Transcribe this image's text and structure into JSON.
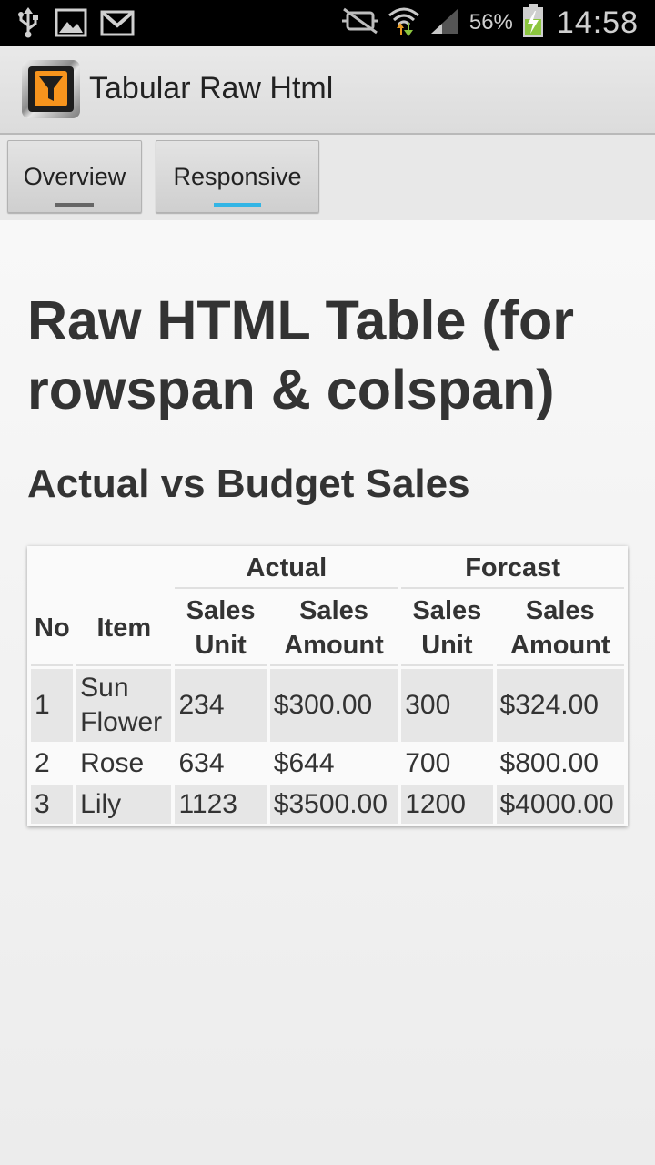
{
  "status_bar": {
    "battery_percent": "56%",
    "time": "14:58",
    "icons": [
      "usb-icon",
      "gallery-icon",
      "gmail-icon",
      "mute-icon",
      "wifi-icon",
      "signal-icon",
      "battery-charging-icon"
    ]
  },
  "action_bar": {
    "title": "Tabular Raw Html"
  },
  "tabs": [
    {
      "label": "Overview",
      "selected": false
    },
    {
      "label": "Responsive",
      "selected": true
    }
  ],
  "page": {
    "heading": "Raw HTML Table (for rowspan & colspan)",
    "subheading": "Actual vs Budget Sales"
  },
  "table": {
    "group_headers": [
      "Actual",
      "Forcast"
    ],
    "headers": {
      "no": "No",
      "item": "Item",
      "actual_unit": "Sales Unit",
      "actual_amount": "Sales Amount",
      "forecast_unit": "Sales Unit",
      "forecast_amount": "Sales Amount"
    },
    "rows": [
      {
        "no": "1",
        "item": "Sun Flower",
        "actual_unit": "234",
        "actual_amount": "$300.00",
        "forecast_unit": "300",
        "forecast_amount": "$324.00"
      },
      {
        "no": "2",
        "item": "Rose",
        "actual_unit": "634",
        "actual_amount": "$644",
        "forecast_unit": "700",
        "forecast_amount": "$800.00"
      },
      {
        "no": "3",
        "item": "Lily",
        "actual_unit": "1123",
        "actual_amount": "$3500.00",
        "forecast_unit": "1200",
        "forecast_amount": "$4000.00"
      }
    ]
  },
  "colors": {
    "status_bar": "#000000",
    "tab_selected_indicator": "#33b5e5",
    "tab_indicator": "#666666",
    "app_icon_orange": "#f7941d",
    "heading_text": "#333333"
  }
}
